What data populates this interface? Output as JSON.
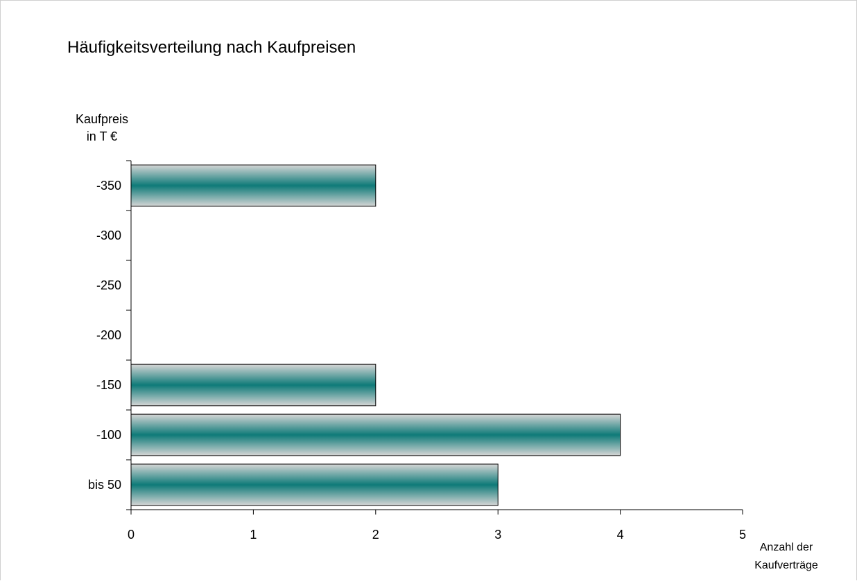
{
  "chart_data": {
    "type": "bar",
    "orientation": "horizontal",
    "title": "Häufigkeitsverteilung nach Kaufpreisen",
    "ylabel": [
      "Kaufpreis",
      "in T €"
    ],
    "xlabel": [
      "Anzahl der",
      "Kaufverträge"
    ],
    "categories": [
      "-350",
      "-300",
      "-250",
      "-200",
      "-150",
      "-100",
      "bis 50"
    ],
    "values": [
      2,
      0,
      0,
      0,
      2,
      4,
      3
    ],
    "xlim": [
      0,
      5
    ],
    "xticks": [
      "0",
      "1",
      "2",
      "3",
      "4",
      "5"
    ],
    "grid": false,
    "legend": "none",
    "colors": {
      "bar_center": "#0e7a78",
      "bar_edge": "#d6d6d6",
      "bar_outline": "#000000",
      "axis": "#000000"
    }
  }
}
